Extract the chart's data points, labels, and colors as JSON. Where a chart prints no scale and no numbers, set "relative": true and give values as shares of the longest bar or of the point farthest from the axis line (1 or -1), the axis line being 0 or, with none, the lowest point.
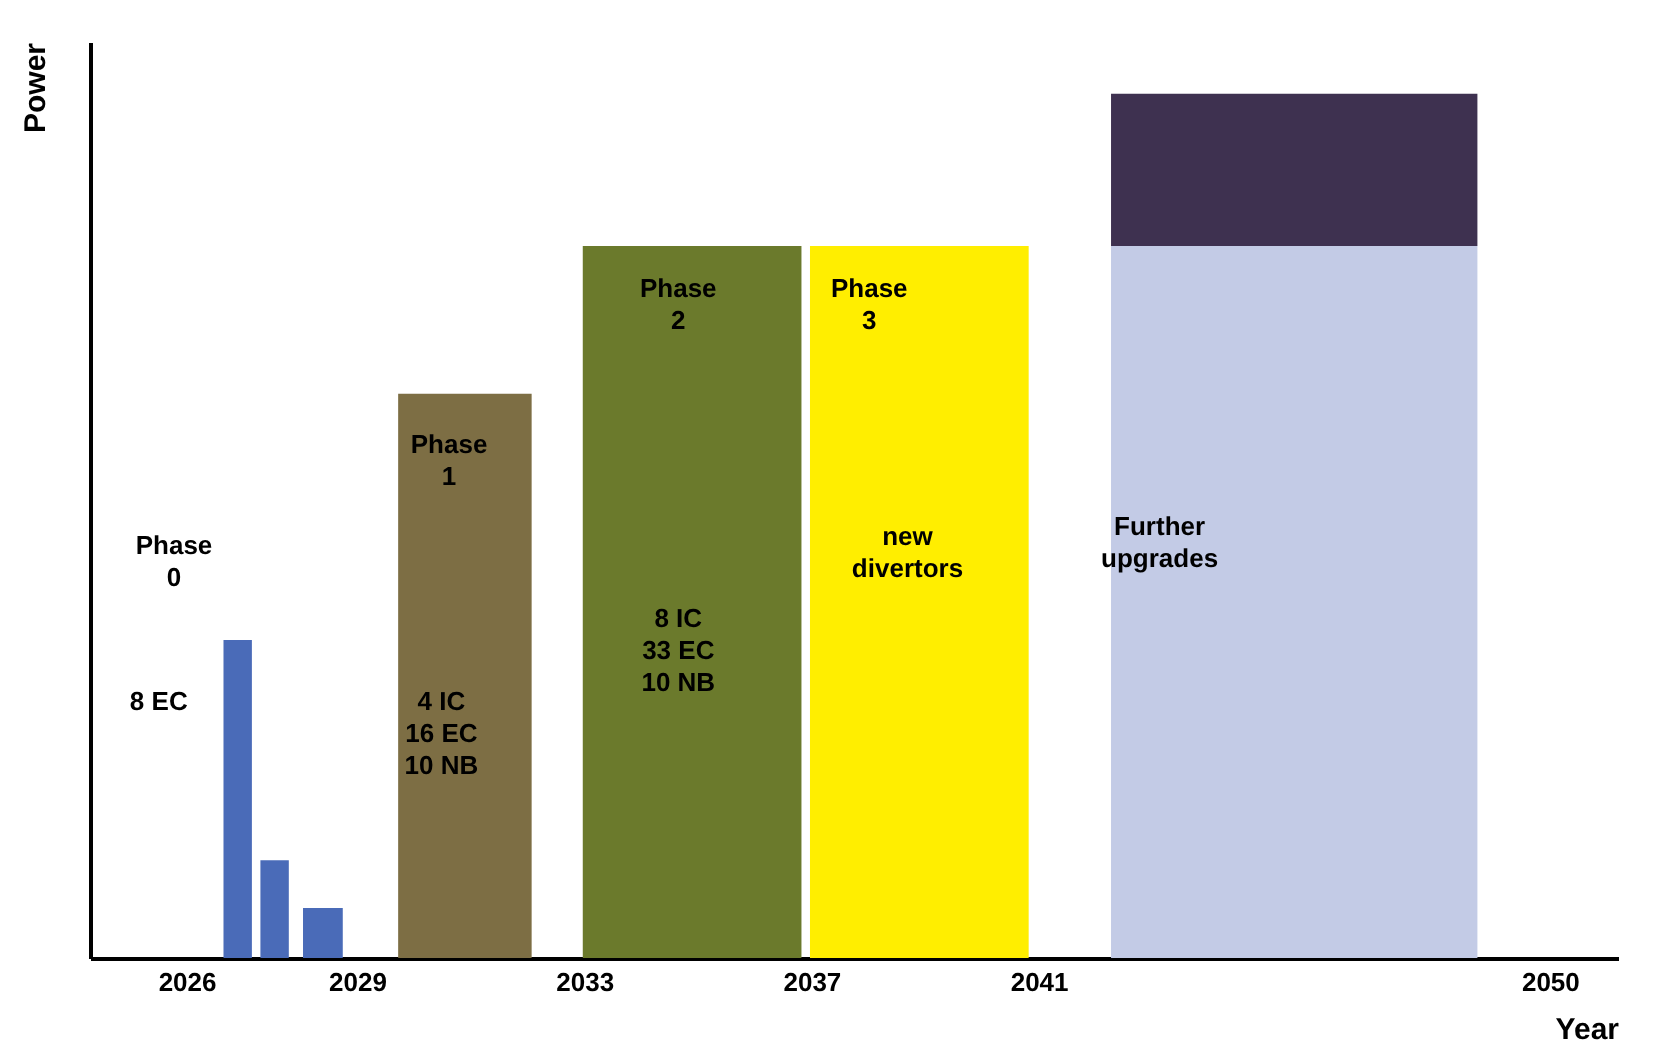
{
  "chart_data": {
    "type": "bar",
    "relative": true,
    "stacked": true,
    "xlabel": "Year",
    "ylabel": "Power",
    "x": [
      2026.9,
      2027.55,
      2028.4,
      2030.9,
      2034.9,
      2038.9,
      2045.5
    ],
    "xlim": [
      2024.3,
      2051.2
    ],
    "xticks": [
      2026,
      2029,
      2033,
      2037,
      2041,
      2050
    ],
    "series": [
      {
        "colors": [
          "#4a6bb8",
          "#4a6bb8",
          "#4a6bb8",
          "#7d6e44",
          "#6b7a2c",
          "#ffee00",
          "#c3cbe6"
        ],
        "values": [
          0.368,
          0.113,
          0.058,
          0.653,
          0.824,
          0.824,
          0.824
        ]
      },
      {
        "colors": [
          null,
          null,
          null,
          null,
          null,
          null,
          "#3e3150"
        ],
        "values": [
          null,
          null,
          null,
          null,
          null,
          null,
          0.176
        ]
      }
    ],
    "annotations": [
      "Phase\n0",
      "8 EC",
      "Phase\n1",
      "4 IC\n16 EC\n10 NB",
      "Phase\n2",
      "8 IC\n33 EC\n10 NB",
      "Phase\n3",
      "new\ndivertors",
      "Further\nupgrades"
    ],
    "grid": false,
    "legend": false
  }
}
